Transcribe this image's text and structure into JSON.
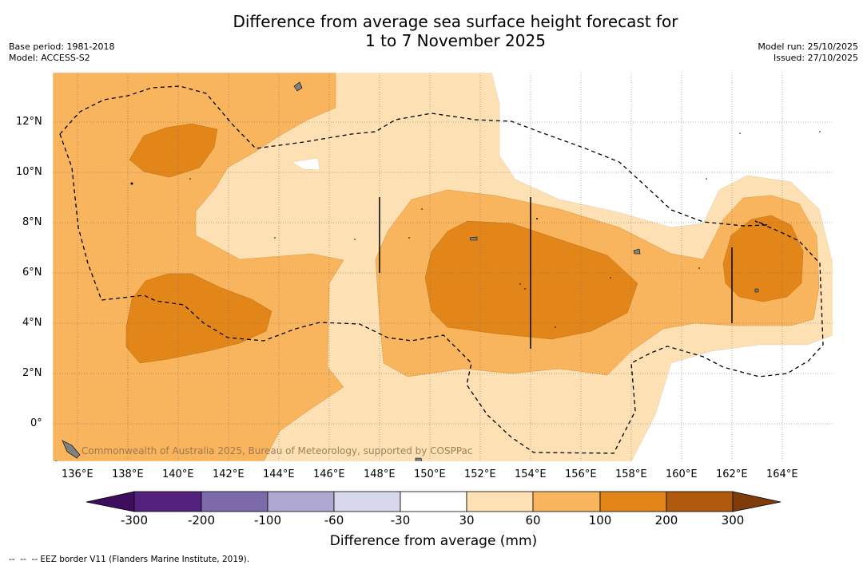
{
  "header": {
    "title_line1": "Difference from average sea surface height forecast for",
    "title_line2": "1 to 7 November 2025",
    "base_period": "Base period: 1981-2018",
    "model": "Model: ACCESS-S2",
    "model_run": "Model run: 25/10/2025",
    "issued": "Issued: 27/10/2025"
  },
  "map": {
    "lon_labels": [
      "136°E",
      "138°E",
      "140°E",
      "142°E",
      "144°E",
      "146°E",
      "148°E",
      "150°E",
      "152°E",
      "154°E",
      "156°E",
      "158°E",
      "160°E",
      "162°E",
      "164°E"
    ],
    "lat_labels": [
      "12°N",
      "10°N",
      "8°N",
      "6°N",
      "4°N",
      "2°N",
      "0°"
    ],
    "lon_range": [
      135,
      166
    ],
    "lat_range": [
      -1.5,
      14
    ],
    "colors": {
      "c30_60": "#fde0b3",
      "c60_100": "#f9b45e",
      "c100_200": "#e3861a",
      "land": "#808080",
      "eez": "#000000"
    },
    "copyright": "Commonwealth of Australia 2025, Bureau of Meteorology, supported by COSPPac"
  },
  "colorbar": {
    "title": "Difference from average (mm)",
    "tick_labels": [
      "-300",
      "-200",
      "-100",
      "-60",
      "-30",
      "30",
      "60",
      "100",
      "200",
      "300"
    ],
    "colors": [
      "#3d0d5e",
      "#55217f",
      "#7c6aaa",
      "#aea8d0",
      "#d7d8ec",
      "#ffffff",
      "#fde0b3",
      "#f9b45e",
      "#e3861a",
      "#b05a0e",
      "#7f3c0a"
    ]
  },
  "footer": {
    "eez_note": "--  --  -- EEZ border V11 (Flanders Marine Institute, 2019)."
  }
}
